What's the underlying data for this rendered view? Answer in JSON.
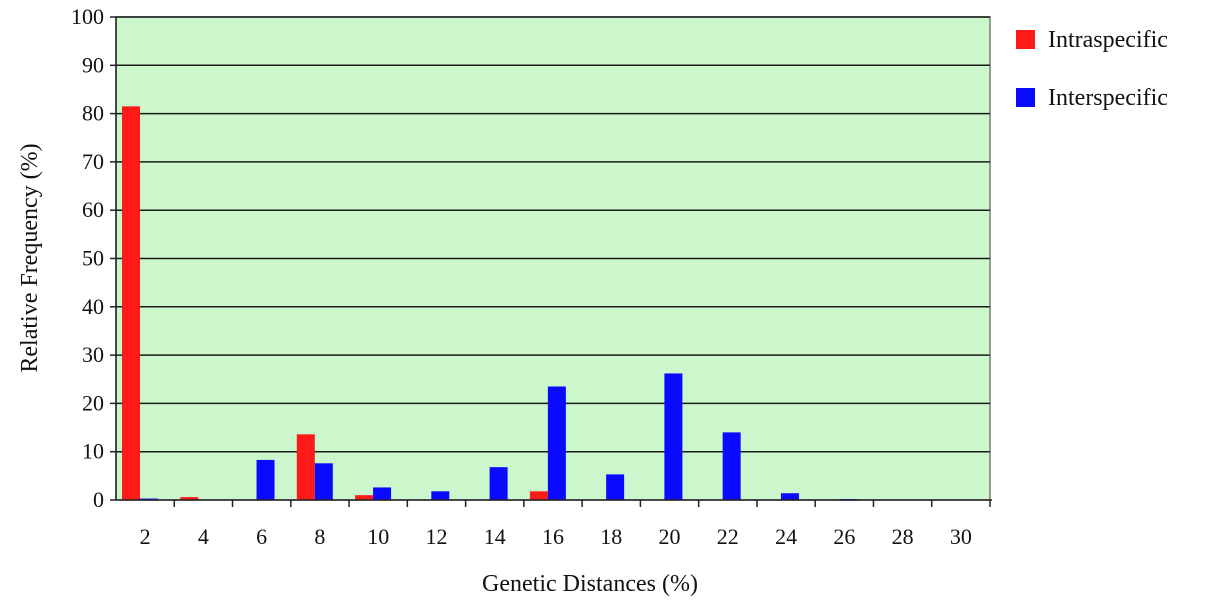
{
  "chart_data": {
    "type": "bar",
    "categories": [
      "2",
      "4",
      "6",
      "8",
      "10",
      "12",
      "14",
      "16",
      "18",
      "20",
      "22",
      "24",
      "26",
      "28",
      "30"
    ],
    "series": [
      {
        "name": "Intraspecific",
        "color": "#ff1a1a",
        "values": [
          81.5,
          0.6,
          0,
          13.6,
          1.0,
          0,
          0,
          1.8,
          0,
          0,
          0,
          0,
          0,
          0,
          0
        ]
      },
      {
        "name": "Interspecific",
        "color": "#0a0aff",
        "values": [
          0.3,
          0,
          8.3,
          7.6,
          2.6,
          1.8,
          6.8,
          23.5,
          5.3,
          26.2,
          14.0,
          1.4,
          0.2,
          0,
          0
        ]
      }
    ],
    "xlabel": "Genetic Distances (%)",
    "ylabel": "Relative Frequency (%)",
    "ylim": [
      0,
      100
    ],
    "yticks": [
      "0",
      "10",
      "20",
      "30",
      "40",
      "50",
      "60",
      "70",
      "80",
      "90",
      "100"
    ],
    "grid": true,
    "plot_background": "#ccf7cc",
    "legend_position": "top-right"
  }
}
